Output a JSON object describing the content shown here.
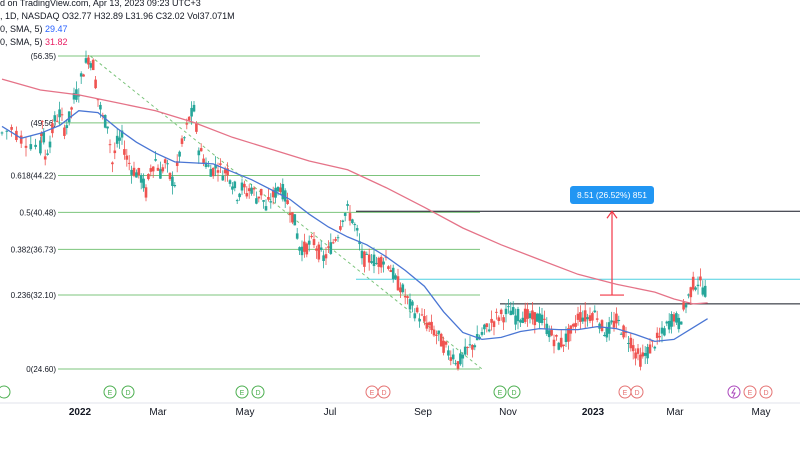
{
  "header": {
    "source": "d on TradingView.com, Apr 13, 2023 09:23 UTC+3",
    "ohlc_line": ", 1D, NASDAQ  O32.77  H32.89  L31.96  C32.02  Vol37.071M",
    "sma1_label": "0, SMA, 5)",
    "sma1_value": "29.47",
    "sma2_label": "0, SMA, 5)",
    "sma2_value": "31.82"
  },
  "colors": {
    "up": "#26a69a",
    "down": "#ef5350",
    "sma_fast": "#4a76d4",
    "sma_slow": "#e57388",
    "fib": "#7cc47c",
    "measure": "#f23645",
    "measure_label_bg": "#2196f3",
    "resistance": "#131722",
    "cyan_line": "#4dd0e1",
    "events_earnings": "#e57373",
    "events_dividend": "#b39ddb"
  },
  "chart_data": {
    "type": "candlestick",
    "x_ticks": [
      "2022",
      "Mar",
      "May",
      "Jul",
      "Sep",
      "Nov",
      "2023",
      "Mar",
      "May"
    ],
    "fib_levels": [
      {
        "ratio": "",
        "price": "56.35",
        "label": "(56.35)"
      },
      {
        "ratio": "",
        "price": "49.56",
        "label": "(49.56)"
      },
      {
        "ratio": "0.618",
        "price": "44.22",
        "label": "0.618(44.22)"
      },
      {
        "ratio": "0.5",
        "price": "40.48",
        "label": "0.5(40.48)"
      },
      {
        "ratio": "0.382",
        "price": "36.73",
        "label": "0.382(36.73)"
      },
      {
        "ratio": "0.236",
        "price": "32.10",
        "label": "0.236(32.10)"
      },
      {
        "ratio": "0",
        "price": "24.60",
        "label": "0(24.60)"
      }
    ],
    "price_range": [
      24.6,
      56.35
    ],
    "measure": {
      "label": "8.51 (26.52%) 851",
      "from": 32.1,
      "to": 40.6
    },
    "resistance_lines": [
      40.6,
      31.2
    ],
    "cyan_level": 33.7,
    "price_path": [
      [
        0,
        48.5
      ],
      [
        10,
        49
      ],
      [
        20,
        48
      ],
      [
        30,
        47.5
      ],
      [
        40,
        47
      ],
      [
        42,
        50
      ],
      [
        45,
        46
      ],
      [
        50,
        47.8
      ],
      [
        55,
        49.8
      ],
      [
        60,
        50.5
      ],
      [
        65,
        49
      ],
      [
        70,
        50
      ],
      [
        75,
        52
      ],
      [
        80,
        53
      ],
      [
        85,
        55
      ],
      [
        90,
        56.2
      ],
      [
        95,
        55.5
      ],
      [
        100,
        52
      ],
      [
        105,
        50
      ],
      [
        110,
        49.5
      ],
      [
        115,
        45.5
      ],
      [
        120,
        47.5
      ],
      [
        125,
        48
      ],
      [
        130,
        46
      ],
      [
        135,
        45
      ],
      [
        140,
        44.5
      ],
      [
        145,
        44
      ],
      [
        150,
        42.5
      ],
      [
        155,
        45
      ],
      [
        160,
        45.8
      ],
      [
        165,
        44.5
      ],
      [
        170,
        45.5
      ],
      [
        175,
        44
      ],
      [
        180,
        43.5
      ],
      [
        185,
        46.5
      ],
      [
        190,
        48
      ],
      [
        195,
        50
      ],
      [
        200,
        50.8
      ],
      [
        205,
        47
      ],
      [
        210,
        46
      ],
      [
        215,
        45
      ],
      [
        220,
        44.8
      ],
      [
        225,
        45.3
      ],
      [
        230,
        44.5
      ],
      [
        235,
        44.8
      ],
      [
        240,
        43.5
      ],
      [
        245,
        42.3
      ],
      [
        250,
        43
      ],
      [
        255,
        42.5
      ],
      [
        260,
        43
      ],
      [
        265,
        42
      ],
      [
        270,
        42.5
      ],
      [
        275,
        40.8
      ],
      [
        280,
        41.8
      ],
      [
        285,
        42.5
      ],
      [
        290,
        43.2
      ],
      [
        295,
        42
      ],
      [
        300,
        41
      ],
      [
        305,
        39.5
      ],
      [
        310,
        37
      ],
      [
        315,
        36.8
      ],
      [
        320,
        37.2
      ],
      [
        325,
        37.5
      ],
      [
        330,
        36.5
      ],
      [
        335,
        35.8
      ],
      [
        340,
        36.5
      ],
      [
        345,
        37.5
      ],
      [
        350,
        38.5
      ],
      [
        355,
        40.2
      ],
      [
        360,
        40.6
      ],
      [
        365,
        39.8
      ],
      [
        370,
        38.3
      ],
      [
        375,
        36
      ],
      [
        380,
        35.5
      ],
      [
        385,
        36
      ],
      [
        390,
        35.3
      ],
      [
        395,
        35.7
      ],
      [
        400,
        35.9
      ],
      [
        405,
        34.8
      ],
      [
        410,
        33.5
      ],
      [
        415,
        33
      ],
      [
        420,
        32
      ],
      [
        425,
        31
      ],
      [
        430,
        30.5
      ],
      [
        435,
        30
      ],
      [
        440,
        29.4
      ],
      [
        445,
        29
      ],
      [
        450,
        28.4
      ],
      [
        455,
        27.8
      ],
      [
        460,
        27
      ],
      [
        465,
        26.3
      ],
      [
        470,
        26
      ],
      [
        475,
        25.2
      ],
      [
        480,
        25.7
      ],
      [
        485,
        26.5
      ],
      [
        490,
        27
      ],
      [
        495,
        27.5
      ],
      [
        500,
        28.1
      ],
      [
        505,
        28.7
      ],
      [
        510,
        29.3
      ],
      [
        515,
        29.8
      ],
      [
        520,
        30
      ],
      [
        525,
        30.2
      ],
      [
        530,
        30.5
      ],
      [
        535,
        29.9
      ],
      [
        540,
        30
      ],
      [
        545,
        30.1
      ],
      [
        550,
        29.7
      ],
      [
        555,
        29.8
      ],
      [
        560,
        29.8
      ],
      [
        565,
        29.2
      ],
      [
        570,
        28.4
      ],
      [
        575,
        27.7
      ],
      [
        580,
        27.1
      ],
      [
        585,
        27.4
      ],
      [
        590,
        28
      ],
      [
        595,
        28.5
      ],
      [
        600,
        30
      ],
      [
        605,
        30
      ],
      [
        610,
        29.8
      ],
      [
        615,
        30.3
      ],
      [
        620,
        30.1
      ],
      [
        625,
        28.8
      ],
      [
        630,
        28.3
      ],
      [
        635,
        29
      ],
      [
        640,
        29.5
      ],
      [
        645,
        28.8
      ],
      [
        650,
        28
      ],
      [
        655,
        27.5
      ],
      [
        660,
        26.3
      ],
      [
        665,
        25.6
      ],
      [
        670,
        26
      ],
      [
        675,
        26.7
      ],
      [
        680,
        27.3
      ],
      [
        685,
        27.7
      ],
      [
        690,
        28.5
      ],
      [
        695,
        29.3
      ],
      [
        700,
        30
      ],
      [
        705,
        29.2
      ],
      [
        710,
        30.6
      ],
      [
        715,
        31.9
      ],
      [
        720,
        33.2
      ],
      [
        725,
        33.5
      ],
      [
        730,
        32.9
      ],
      [
        735,
        32.3
      ]
    ],
    "sma_fast": [
      [
        0,
        49.2
      ],
      [
        20,
        48
      ],
      [
        40,
        48.5
      ],
      [
        60,
        49.3
      ],
      [
        80,
        50.8
      ],
      [
        100,
        50.6
      ],
      [
        120,
        49
      ],
      [
        140,
        47.6
      ],
      [
        160,
        46.5
      ],
      [
        180,
        45.6
      ],
      [
        200,
        45.5
      ],
      [
        220,
        45.4
      ],
      [
        240,
        44.6
      ],
      [
        260,
        43.8
      ],
      [
        280,
        42.8
      ],
      [
        300,
        41.8
      ],
      [
        320,
        40.3
      ],
      [
        340,
        39
      ],
      [
        360,
        38
      ],
      [
        380,
        37.2
      ],
      [
        400,
        36
      ],
      [
        420,
        34.6
      ],
      [
        440,
        33
      ],
      [
        460,
        30.4
      ],
      [
        480,
        28.3
      ],
      [
        500,
        27.6
      ],
      [
        520,
        27.8
      ],
      [
        540,
        28.4
      ],
      [
        560,
        28.7
      ],
      [
        580,
        28.6
      ],
      [
        600,
        28.6
      ],
      [
        620,
        28.9
      ],
      [
        640,
        28.7
      ],
      [
        660,
        28.1
      ],
      [
        680,
        27.4
      ],
      [
        700,
        27.6
      ],
      [
        720,
        28.8
      ],
      [
        735,
        29.7
      ]
    ],
    "sma_slow": [
      [
        0,
        54
      ],
      [
        40,
        52.9
      ],
      [
        80,
        52.4
      ],
      [
        120,
        51.6
      ],
      [
        160,
        50.8
      ],
      [
        200,
        49.6
      ],
      [
        240,
        48.1
      ],
      [
        280,
        46.9
      ],
      [
        320,
        45.7
      ],
      [
        360,
        44.8
      ],
      [
        400,
        43
      ],
      [
        440,
        41
      ],
      [
        480,
        38.9
      ],
      [
        520,
        37.2
      ],
      [
        560,
        35.7
      ],
      [
        600,
        34.2
      ],
      [
        640,
        33.2
      ],
      [
        680,
        32.4
      ],
      [
        700,
        31.7
      ],
      [
        720,
        31.2
      ],
      [
        735,
        31.3
      ]
    ],
    "event_markers": [
      "E",
      "D",
      "E",
      "D",
      "E",
      "D",
      "E",
      "D",
      "E",
      "D",
      "E",
      "D",
      "E",
      "D"
    ]
  }
}
